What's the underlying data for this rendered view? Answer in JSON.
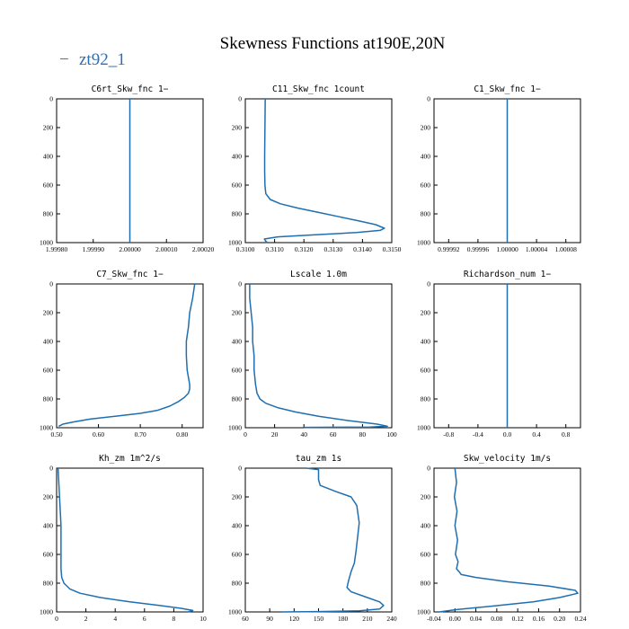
{
  "figure_title": "Skewness Functions at190E,20N",
  "legend": {
    "symbol": "−",
    "label": "zt92_1",
    "color": "#2a6ebb"
  },
  "colors": {
    "line": "#1f6fb0",
    "axis": "#000000"
  },
  "chart_data": [
    {
      "type": "line",
      "title": "C6rt_Skw_fnc  1−",
      "xlim": [
        1.9998,
        2.0002
      ],
      "ylim": [
        0,
        1000
      ],
      "xticks": [
        1.9998,
        1.9999,
        2.0,
        2.0001,
        2.0002
      ],
      "xtick_labels": [
        "1.99980",
        "1.99990",
        "2.00000",
        "2.00010",
        "2.00020"
      ],
      "yticks": [
        0,
        200,
        400,
        600,
        800,
        1000
      ],
      "ytick_labels": [
        "0",
        "200",
        "400",
        "600",
        "800",
        "1000"
      ],
      "series": [
        {
          "name": "zt92_1",
          "x": [
            2.0,
            2.0
          ],
          "y": [
            0,
            1000
          ]
        }
      ]
    },
    {
      "type": "line",
      "title": "C11_Skw_fnc  1count",
      "xlim": [
        0.31,
        0.315
      ],
      "ylim": [
        0,
        1000
      ],
      "xticks": [
        0.31,
        0.311,
        0.312,
        0.313,
        0.314,
        0.315
      ],
      "xtick_labels": [
        "0.3100",
        "0.3110",
        "0.3120",
        "0.3130",
        "0.3140",
        "0.3150"
      ],
      "yticks": [
        0,
        200,
        400,
        600,
        800,
        1000
      ],
      "ytick_labels": [
        "0",
        "200",
        "400",
        "600",
        "800",
        "1000"
      ],
      "series": [
        {
          "name": "zt92_1",
          "x": [
            0.31068,
            0.31067,
            0.31066,
            0.31066,
            0.31067,
            0.3107,
            0.31085,
            0.3112,
            0.3118,
            0.3125,
            0.3132,
            0.3139,
            0.31445,
            0.31475,
            0.3146,
            0.3138,
            0.3124,
            0.3111,
            0.31065,
            0.3107,
            0.31075
          ],
          "y": [
            0,
            200,
            400,
            500,
            600,
            660,
            700,
            730,
            760,
            790,
            820,
            850,
            875,
            900,
            915,
            930,
            945,
            960,
            975,
            990,
            1000
          ]
        }
      ]
    },
    {
      "type": "line",
      "title": "C1_Skw_fnc  1−",
      "xlim": [
        0.9999,
        1.0001
      ],
      "ylim": [
        0,
        1000
      ],
      "xticks": [
        0.99992,
        0.99996,
        1.0,
        1.00004,
        1.00008
      ],
      "xtick_labels": [
        "0.99992",
        "0.99996",
        "1.00000",
        "1.00004",
        "1.00008"
      ],
      "yticks": [
        0,
        200,
        400,
        600,
        800,
        1000
      ],
      "ytick_labels": [
        "0",
        "200",
        "400",
        "600",
        "800",
        "1000"
      ],
      "series": [
        {
          "name": "zt92_1",
          "x": [
            1.0,
            1.0
          ],
          "y": [
            0,
            1000
          ]
        }
      ]
    },
    {
      "type": "line",
      "title": "C7_Skw_fnc  1−",
      "xlim": [
        0.5,
        0.85
      ],
      "ylim": [
        0,
        1000
      ],
      "xticks": [
        0.5,
        0.6,
        0.7,
        0.8
      ],
      "xtick_labels": [
        "0.50",
        "0.60",
        "0.70",
        "0.80"
      ],
      "yticks": [
        0,
        200,
        400,
        600,
        800,
        1000
      ],
      "ytick_labels": [
        "0",
        "200",
        "400",
        "600",
        "800",
        "1000"
      ],
      "series": [
        {
          "name": "zt92_1",
          "x": [
            0.83,
            0.825,
            0.818,
            0.815,
            0.81,
            0.81,
            0.812,
            0.815,
            0.818,
            0.818,
            0.815,
            0.805,
            0.79,
            0.77,
            0.74,
            0.7,
            0.64,
            0.58,
            0.54,
            0.515,
            0.505
          ],
          "y": [
            0,
            100,
            200,
            300,
            400,
            500,
            600,
            650,
            700,
            730,
            760,
            790,
            820,
            850,
            880,
            900,
            920,
            940,
            960,
            975,
            990
          ]
        }
      ]
    },
    {
      "type": "line",
      "title": "Lscale  1.0m",
      "xlim": [
        0,
        100
      ],
      "ylim": [
        0,
        1000
      ],
      "xticks": [
        0,
        20,
        40,
        60,
        80,
        100
      ],
      "xtick_labels": [
        "0",
        "20",
        "40",
        "60",
        "80",
        "100"
      ],
      "yticks": [
        0,
        200,
        400,
        600,
        800,
        1000
      ],
      "ytick_labels": [
        "0",
        "200",
        "400",
        "600",
        "800",
        "1000"
      ],
      "series": [
        {
          "name": "zt92_1",
          "x": [
            3,
            3,
            4,
            5,
            5,
            6,
            6,
            7,
            8,
            10,
            14,
            22,
            34,
            50,
            70,
            90,
            97,
            85,
            40
          ],
          "y": [
            0,
            100,
            200,
            300,
            400,
            500,
            600,
            700,
            760,
            800,
            830,
            860,
            890,
            920,
            950,
            975,
            990,
            995,
            998
          ]
        }
      ]
    },
    {
      "type": "line",
      "title": "Richardson_num  1−",
      "xlim": [
        -1.0,
        1.0
      ],
      "ylim": [
        0,
        1000
      ],
      "xticks": [
        -0.8,
        -0.4,
        0.0,
        0.4,
        0.8
      ],
      "xtick_labels": [
        "-0.8",
        "-0.4",
        "0.0",
        "0.4",
        "0.8"
      ],
      "yticks": [
        0,
        200,
        400,
        600,
        800,
        1000
      ],
      "ytick_labels": [
        "0",
        "200",
        "400",
        "600",
        "800",
        "1000"
      ],
      "series": [
        {
          "name": "zt92_1",
          "x": [
            0.0,
            0.0
          ],
          "y": [
            0,
            1000
          ]
        }
      ]
    },
    {
      "type": "line",
      "title": "Kh_zm  1m^2/s",
      "xlim": [
        0,
        10
      ],
      "ylim": [
        0,
        1000
      ],
      "xticks": [
        0,
        2,
        4,
        6,
        8,
        10
      ],
      "xtick_labels": [
        "0",
        "2",
        "4",
        "6",
        "8",
        "10"
      ],
      "yticks": [
        0,
        200,
        400,
        600,
        800,
        1000
      ],
      "ytick_labels": [
        "0",
        "200",
        "400",
        "600",
        "800",
        "1000"
      ],
      "series": [
        {
          "name": "zt92_1",
          "x": [
            0.1,
            0.15,
            0.2,
            0.25,
            0.3,
            0.3,
            0.3,
            0.3,
            0.35,
            0.5,
            0.9,
            1.6,
            3.0,
            5.0,
            7.0,
            8.5,
            9.3,
            9.0
          ],
          "y": [
            0,
            100,
            200,
            300,
            400,
            500,
            600,
            700,
            760,
            800,
            840,
            870,
            900,
            930,
            955,
            975,
            990,
            1000
          ]
        }
      ]
    },
    {
      "type": "line",
      "title": "tau_zm  1s",
      "xlim": [
        60,
        240
      ],
      "ylim": [
        0,
        1000
      ],
      "xticks": [
        60,
        90,
        120,
        150,
        180,
        210,
        240
      ],
      "xtick_labels": [
        "60",
        "90",
        "120",
        "150",
        "180",
        "210",
        "240"
      ],
      "yticks": [
        0,
        200,
        400,
        600,
        800,
        1000
      ],
      "ytick_labels": [
        "0",
        "200",
        "400",
        "600",
        "800",
        "1000"
      ],
      "series": [
        {
          "name": "zt92_1",
          "x": [
            135,
            150,
            150,
            152,
            170,
            190,
            197,
            200,
            198,
            196,
            194,
            190,
            187,
            185,
            190,
            210,
            225,
            230,
            225,
            200,
            150,
            105
          ],
          "y": [
            0,
            10,
            80,
            120,
            160,
            200,
            260,
            380,
            480,
            580,
            660,
            720,
            780,
            830,
            860,
            900,
            930,
            955,
            980,
            992,
            998,
            1000
          ]
        }
      ]
    },
    {
      "type": "line",
      "title": "Skw_velocity  1m/s",
      "xlim": [
        -0.04,
        0.24
      ],
      "ylim": [
        0,
        1000
      ],
      "xticks": [
        -0.04,
        0.0,
        0.04,
        0.08,
        0.12,
        0.16,
        0.2,
        0.24
      ],
      "xtick_labels": [
        "-0.04",
        "0.00",
        "0.04",
        "0.08",
        "0.12",
        "0.16",
        "0.20",
        "0.24"
      ],
      "yticks": [
        0,
        200,
        400,
        600,
        800,
        1000
      ],
      "ytick_labels": [
        "0",
        "200",
        "400",
        "600",
        "800",
        "1000"
      ],
      "series": [
        {
          "name": "zt92_1",
          "x": [
            0.0,
            0.003,
            -0.001,
            0.004,
            0.0,
            0.005,
            0.001,
            0.006,
            0.003,
            0.008,
            0.012,
            0.04,
            0.1,
            0.18,
            0.23,
            0.235,
            0.2,
            0.15,
            0.07,
            0.0,
            -0.03
          ],
          "y": [
            0,
            100,
            200,
            300,
            400,
            500,
            600,
            650,
            700,
            720,
            740,
            760,
            790,
            820,
            850,
            870,
            900,
            930,
            960,
            985,
            1000
          ]
        }
      ]
    }
  ]
}
